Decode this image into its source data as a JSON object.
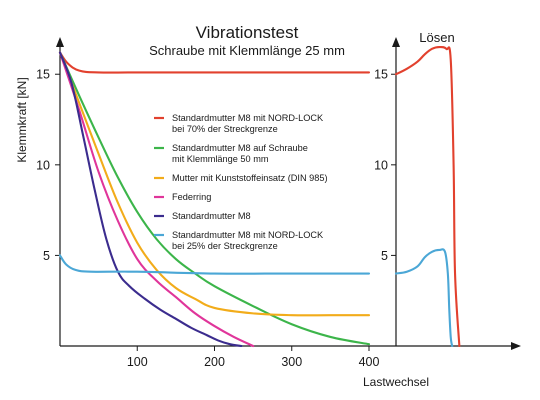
{
  "chart_data": [
    {
      "type": "line",
      "title": "Vibrationstest",
      "subtitle": "Schraube mit Klemmlänge 25 mm",
      "ylabel": "Klemmkraft [kN]",
      "xlabel": "Lastwechsel",
      "xlim": [
        0,
        400
      ],
      "ylim": [
        0,
        17
      ],
      "xticks": [
        100,
        200,
        300,
        400
      ],
      "yticks": [
        5,
        10,
        15
      ],
      "legend_position": "center-right",
      "series": [
        {
          "name": "Standardmutter M8 mit NORD-LOCK bei 70% der Streckgrenze",
          "color": "#e2412e",
          "x": [
            0,
            10,
            25,
            50,
            100,
            200,
            300,
            400
          ],
          "y": [
            16.2,
            15.6,
            15.2,
            15.1,
            15.1,
            15.1,
            15.1,
            15.1
          ]
        },
        {
          "name": "Standardmutter M8 auf Schraube mit Klemmlänge 50 mm",
          "color": "#3cb54a",
          "x": [
            0,
            25,
            50,
            75,
            100,
            125,
            150,
            175,
            200,
            250,
            300,
            350,
            400
          ],
          "y": [
            16.2,
            13.8,
            11.5,
            9.3,
            7.4,
            5.9,
            4.8,
            4.0,
            3.3,
            2.2,
            1.2,
            0.5,
            0.1
          ]
        },
        {
          "name": "Mutter mit Kunststoffeinsatz (DIN 985)",
          "color": "#f2ac1a",
          "x": [
            0,
            25,
            50,
            75,
            100,
            125,
            150,
            175,
            200,
            250,
            300,
            350,
            400
          ],
          "y": [
            16.2,
            13.4,
            10.6,
            7.9,
            5.7,
            4.2,
            3.2,
            2.6,
            2.1,
            1.8,
            1.7,
            1.7,
            1.7
          ]
        },
        {
          "name": "Federring",
          "color": "#e0359a",
          "x": [
            0,
            25,
            50,
            75,
            100,
            125,
            150,
            175,
            200,
            225,
            250
          ],
          "y": [
            16.2,
            13.0,
            9.6,
            6.9,
            4.8,
            3.6,
            2.7,
            1.8,
            1.1,
            0.5,
            0.0
          ]
        },
        {
          "name": "Standardmutter M8",
          "color": "#3b2c8e",
          "x": [
            0,
            15,
            30,
            45,
            60,
            75,
            90,
            110,
            130,
            150,
            170,
            190,
            205,
            220,
            235
          ],
          "y": [
            16.2,
            14.5,
            11.6,
            8.6,
            5.9,
            4.1,
            3.3,
            2.6,
            2.0,
            1.5,
            1.0,
            0.6,
            0.3,
            0.1,
            0.0
          ]
        },
        {
          "name": "Standardmutter M8 mit NORD-LOCK bei 25% der Streckgrenze",
          "color": "#4ba7d6",
          "x": [
            0,
            8,
            20,
            40,
            100,
            200,
            300,
            400
          ],
          "y": [
            5.0,
            4.5,
            4.2,
            4.1,
            4.1,
            4.0,
            4.0,
            4.0
          ]
        }
      ]
    },
    {
      "type": "line",
      "title": "Lösen",
      "ylim": [
        0,
        17
      ],
      "yticks": [
        5,
        10,
        15
      ],
      "series": [
        {
          "name": "Standardmutter M8 mit NORD-LOCK bei 70% der Streckgrenze",
          "color": "#e2412e",
          "x": [
            0,
            0.15,
            0.3,
            0.4,
            0.5,
            0.6,
            0.7,
            0.76,
            0.8,
            0.82,
            0.88
          ],
          "y": [
            15.0,
            15.3,
            15.7,
            16.1,
            16.4,
            16.5,
            16.4,
            15.8,
            10,
            4,
            0
          ]
        },
        {
          "name": "Standardmutter M8 mit NORD-LOCK bei 25% der Streckgrenze",
          "color": "#4ba7d6",
          "x": [
            0,
            0.15,
            0.3,
            0.4,
            0.5,
            0.6,
            0.68,
            0.72,
            0.74,
            0.76,
            0.78
          ],
          "y": [
            4.0,
            4.1,
            4.4,
            4.9,
            5.2,
            5.3,
            5.2,
            4.0,
            2.0,
            0.5,
            0
          ]
        }
      ]
    }
  ]
}
